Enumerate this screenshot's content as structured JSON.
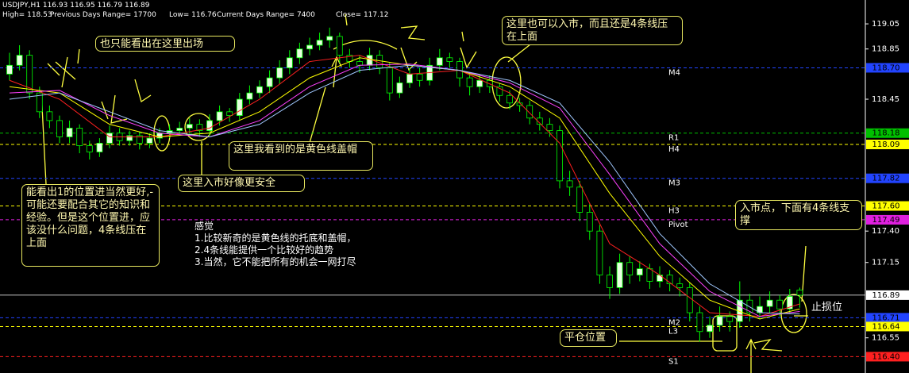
{
  "chart_data": {
    "type": "candlestick",
    "title": "USDJPY,H1",
    "quote": [
      116.93,
      116.95,
      116.79,
      116.89
    ],
    "stats": [
      {
        "label": "High=",
        "value": 118.53
      },
      {
        "label": "Previous Days Range=",
        "value": 17700
      },
      {
        "label": "Low=",
        "value": 116.76
      },
      {
        "label": "Current Days Range=",
        "value": 7400
      },
      {
        "label": "Close=",
        "value": 117.12
      }
    ],
    "ylim": [
      116.27,
      119.24
    ],
    "yticks": [
      119.05,
      118.85,
      118.45,
      {
        "value": 117.4,
        "label": "117.40"
      },
      117.15,
      116.55
    ],
    "candle_colors": {
      "up": "#e8ffe0",
      "down": "#000000",
      "wick": "#00ff00"
    },
    "ohlc": [
      [
        118.65,
        118.82,
        118.6,
        118.72
      ],
      [
        118.72,
        118.88,
        118.68,
        118.8
      ],
      [
        118.8,
        118.84,
        118.45,
        118.5
      ],
      [
        118.5,
        118.55,
        118.3,
        118.35
      ],
      [
        118.35,
        118.4,
        118.22,
        118.28
      ],
      [
        118.28,
        118.32,
        118.1,
        118.15
      ],
      [
        118.15,
        118.28,
        118.1,
        118.22
      ],
      [
        118.22,
        118.25,
        118.02,
        118.08
      ],
      [
        118.08,
        118.12,
        117.97,
        118.03
      ],
      [
        118.03,
        118.14,
        117.99,
        118.1
      ],
      [
        118.1,
        118.24,
        118.06,
        118.18
      ],
      [
        118.18,
        118.22,
        118.08,
        118.12
      ],
      [
        118.12,
        118.2,
        118.08,
        118.16
      ],
      [
        118.16,
        118.19,
        118.05,
        118.1
      ],
      [
        118.1,
        118.18,
        118.06,
        118.14
      ],
      [
        118.14,
        118.22,
        118.1,
        118.18
      ],
      [
        118.18,
        118.25,
        118.14,
        118.2
      ],
      [
        118.2,
        118.27,
        118.16,
        118.22
      ],
      [
        118.22,
        118.3,
        118.18,
        118.25
      ],
      [
        118.25,
        118.29,
        118.15,
        118.2
      ],
      [
        118.2,
        118.33,
        118.16,
        118.28
      ],
      [
        118.28,
        118.4,
        118.24,
        118.35
      ],
      [
        118.35,
        118.38,
        118.27,
        118.32
      ],
      [
        118.32,
        118.5,
        118.28,
        118.45
      ],
      [
        118.45,
        118.56,
        118.41,
        118.5
      ],
      [
        118.5,
        118.6,
        118.46,
        118.55
      ],
      [
        118.55,
        118.68,
        118.5,
        118.62
      ],
      [
        118.62,
        118.76,
        118.57,
        118.7
      ],
      [
        118.7,
        118.84,
        118.65,
        118.78
      ],
      [
        118.78,
        118.9,
        118.73,
        118.85
      ],
      [
        118.85,
        118.94,
        118.8,
        118.88
      ],
      [
        118.88,
        118.98,
        118.84,
        118.92
      ],
      [
        118.92,
        119.02,
        118.86,
        118.95
      ],
      [
        118.95,
        118.98,
        118.74,
        118.8
      ],
      [
        118.8,
        118.85,
        118.7,
        118.75
      ],
      [
        118.75,
        118.8,
        118.66,
        118.72
      ],
      [
        118.72,
        118.86,
        118.68,
        118.8
      ],
      [
        118.8,
        118.84,
        118.65,
        118.7
      ],
      [
        118.7,
        118.74,
        118.44,
        118.5
      ],
      [
        118.5,
        118.63,
        118.46,
        118.58
      ],
      [
        118.58,
        118.7,
        118.54,
        118.65
      ],
      [
        118.65,
        118.7,
        118.55,
        118.6
      ],
      [
        118.6,
        118.78,
        118.56,
        118.72
      ],
      [
        118.72,
        118.85,
        118.68,
        118.78
      ],
      [
        118.78,
        118.82,
        118.7,
        118.75
      ],
      [
        118.75,
        118.78,
        118.55,
        118.62
      ],
      [
        118.62,
        118.66,
        118.48,
        118.55
      ],
      [
        118.55,
        118.65,
        118.5,
        118.6
      ],
      [
        118.6,
        118.64,
        118.5,
        118.55
      ],
      [
        118.55,
        118.58,
        118.43,
        118.48
      ],
      [
        118.48,
        118.52,
        118.37,
        118.42
      ],
      [
        118.42,
        118.46,
        118.35,
        118.4
      ],
      [
        118.4,
        118.44,
        118.25,
        118.3
      ],
      [
        118.3,
        118.35,
        118.2,
        118.25
      ],
      [
        118.25,
        118.3,
        118.15,
        118.2
      ],
      [
        118.2,
        118.24,
        117.74,
        117.8
      ],
      [
        117.8,
        117.88,
        117.68,
        117.75
      ],
      [
        117.75,
        117.8,
        117.48,
        117.55
      ],
      [
        117.55,
        117.62,
        117.33,
        117.4
      ],
      [
        117.4,
        117.45,
        116.98,
        117.05
      ],
      [
        117.05,
        117.12,
        116.86,
        116.95
      ],
      [
        116.95,
        117.22,
        116.9,
        117.15
      ],
      [
        117.15,
        117.2,
        116.98,
        117.05
      ],
      [
        117.05,
        117.16,
        117.0,
        117.1
      ],
      [
        117.1,
        117.14,
        116.94,
        117.0
      ],
      [
        117.0,
        117.12,
        116.95,
        117.05
      ],
      [
        117.05,
        117.09,
        116.92,
        116.98
      ],
      [
        116.98,
        117.03,
        116.88,
        116.95
      ],
      [
        116.95,
        116.99,
        116.68,
        116.75
      ],
      [
        116.75,
        116.8,
        116.52,
        116.6
      ],
      [
        116.6,
        116.72,
        116.55,
        116.65
      ],
      [
        116.65,
        116.8,
        116.6,
        116.72
      ],
      [
        116.72,
        116.76,
        116.6,
        116.68
      ],
      [
        116.68,
        117.0,
        116.63,
        116.85
      ],
      [
        116.85,
        116.9,
        116.68,
        116.75
      ],
      [
        116.75,
        116.88,
        116.7,
        116.8
      ],
      [
        116.8,
        116.92,
        116.75,
        116.85
      ],
      [
        116.85,
        116.89,
        116.72,
        116.78
      ],
      [
        116.78,
        116.94,
        116.74,
        116.88
      ],
      [
        116.93,
        116.95,
        116.79,
        116.89
      ]
    ],
    "ma": [
      {
        "color": "#ff2020",
        "x": [
          0,
          5,
          10,
          15,
          20,
          25,
          30,
          35,
          40,
          45,
          50,
          55,
          60,
          65,
          70,
          75,
          79
        ],
        "values": [
          118.6,
          118.45,
          118.15,
          118.15,
          118.22,
          118.45,
          118.75,
          118.8,
          118.65,
          118.68,
          118.5,
          118.1,
          117.3,
          117.05,
          116.75,
          116.72,
          116.82
        ]
      },
      {
        "color": "#ffff00",
        "x": [
          0,
          5,
          10,
          15,
          20,
          25,
          30,
          35,
          40,
          45,
          50,
          55,
          60,
          65,
          70,
          75,
          79
        ],
        "values": [
          118.55,
          118.5,
          118.25,
          118.15,
          118.18,
          118.35,
          118.62,
          118.78,
          118.72,
          118.68,
          118.55,
          118.3,
          117.7,
          117.2,
          116.85,
          116.7,
          116.78
        ]
      },
      {
        "color": "#ff40ff",
        "x": [
          0,
          5,
          10,
          15,
          20,
          25,
          30,
          35,
          40,
          45,
          50,
          55,
          60,
          65,
          70,
          75,
          79
        ],
        "values": [
          118.5,
          118.52,
          118.32,
          118.18,
          118.15,
          118.28,
          118.55,
          118.72,
          118.73,
          118.68,
          118.58,
          118.38,
          117.85,
          117.3,
          116.92,
          116.72,
          116.76
        ]
      },
      {
        "color": "#a0c8ff",
        "x": [
          0,
          5,
          10,
          15,
          20,
          25,
          30,
          35,
          40,
          45,
          50,
          55,
          60,
          65,
          70,
          75,
          79
        ],
        "values": [
          118.45,
          118.5,
          118.35,
          118.2,
          118.15,
          118.25,
          118.5,
          118.68,
          118.72,
          118.68,
          118.6,
          118.42,
          117.95,
          117.38,
          116.98,
          116.75,
          116.74
        ]
      }
    ],
    "levels": [
      {
        "name": "M4",
        "value": 118.7,
        "color": "#2244ff",
        "label": "118.70"
      },
      {
        "name": "R1",
        "value": 118.18,
        "color": "#00c000",
        "label": "118.18"
      },
      {
        "name": "H4",
        "value": 118.09,
        "color": "#ffff00",
        "label": "118.09"
      },
      {
        "name": "M3",
        "value": 117.82,
        "color": "#2244ff",
        "label": "117.82"
      },
      {
        "name": "H3",
        "value": 117.6,
        "color": "#ffff00",
        "label": "117.60"
      },
      {
        "name": "Pivot",
        "value": 117.49,
        "color": "#e020e0",
        "label": "117.49"
      },
      {
        "name": "M2",
        "value": 116.71,
        "color": "#2244ff",
        "label": "116.71"
      },
      {
        "name": "L3",
        "value": 116.64,
        "color": "#ffff00",
        "label": "116.64"
      },
      {
        "name": "S1",
        "value": 116.4,
        "color": "#ff2020",
        "label": "116.40"
      }
    ],
    "price": 116.89,
    "price_color": "#ffffff"
  },
  "annotations": {
    "exit": "也只能看出在这里出场",
    "entry_top": "这里也可以入市，而且还是4条线压在上面",
    "yellow_cap": "这里我看到的是黄色线盖帽",
    "safer_entry": "这里入市好像更安全",
    "position_one": "能看出1的位置进当然更好,-可能还要配合其它的知识和经验。但是这个位置进，应该没什么问题，4条线压在上面",
    "entry_point": "入市点，下面有4条线支撑",
    "stop_loss": "止损位",
    "close_position": "平仓位置"
  },
  "notes": {
    "title": "感觉",
    "items": [
      "1.比较新奇的是黄色线的托底和盖帽，",
      "2.4条线能提供一个比较好的趋势",
      "3.当然，它不能把所有的机会一网打尽"
    ]
  }
}
